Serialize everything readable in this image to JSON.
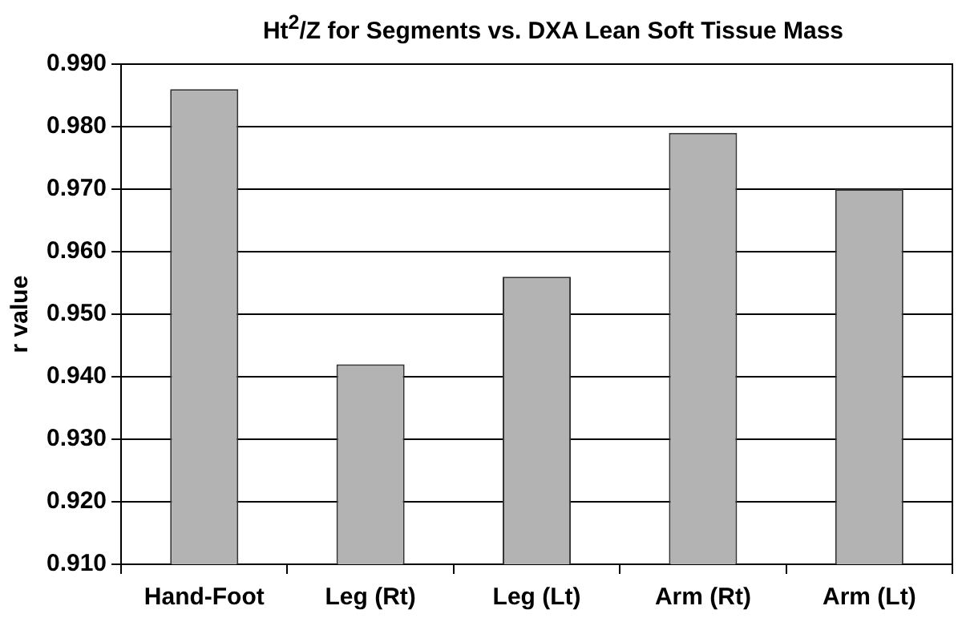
{
  "chart_data": {
    "type": "bar",
    "title": "Ht$^{2}$/Z for Segments vs. DXA Lean Soft Tissue Mass",
    "ylabel": "r value",
    "categories": [
      "Hand-Foot",
      "Leg (Rt)",
      "Leg (Lt)",
      "Arm (Rt)",
      "Arm (Lt)"
    ],
    "values": [
      0.986,
      0.942,
      0.956,
      0.979,
      0.97
    ],
    "color": "#b3b3b3",
    "ylim": [
      0.91,
      0.99
    ],
    "yticks": [
      {
        "value": 0.91,
        "label": "0.910"
      },
      {
        "value": 0.92,
        "label": "0.920"
      },
      {
        "value": 0.93,
        "label": "0.930"
      },
      {
        "value": 0.94,
        "label": "0.940"
      },
      {
        "value": 0.95,
        "label": "0.950"
      },
      {
        "value": 0.96,
        "label": "0.960"
      },
      {
        "value": 0.97,
        "label": "0.970"
      },
      {
        "value": 0.98,
        "label": "0.980"
      },
      {
        "value": 0.99,
        "label": "0.990"
      }
    ],
    "grid": "y",
    "legend": false
  }
}
